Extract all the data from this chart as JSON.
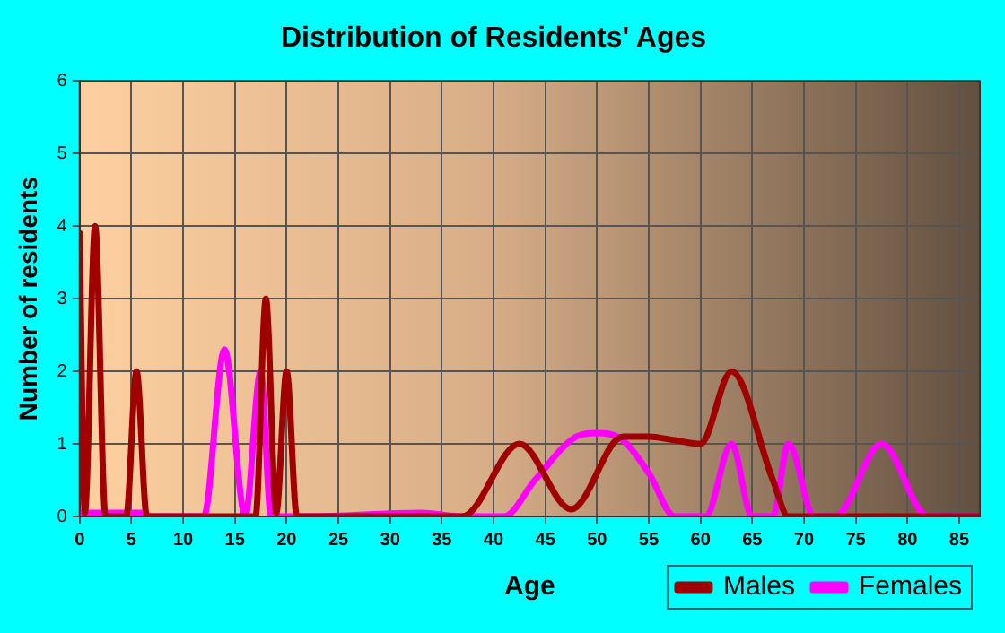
{
  "chart_data": {
    "type": "line",
    "title": "Distribution of Residents' Ages",
    "xlabel": "Age",
    "ylabel": "Number of residents",
    "xlim": [
      0,
      87
    ],
    "xticks": [
      0,
      5,
      10,
      15,
      20,
      25,
      30,
      35,
      40,
      45,
      50,
      55,
      60,
      65,
      70,
      75,
      80,
      85
    ],
    "ylim": [
      0,
      6
    ],
    "yticks": [
      0,
      1,
      2,
      3,
      4,
      5,
      6
    ],
    "grid": true,
    "legend": "bottom right",
    "marker": "none",
    "line_style": "solid",
    "series": [
      {
        "name": "Males",
        "color": "#a00000",
        "x": [
          0,
          0.5,
          1.5,
          2.5,
          4.5,
          5.5,
          6.5,
          17,
          18,
          19,
          20,
          21,
          37,
          42.5,
          47.5,
          52.5,
          55,
          57.5,
          60,
          63,
          67,
          68.5,
          87
        ],
        "values": [
          3.9,
          0.05,
          4,
          0,
          0,
          2,
          0,
          0,
          3,
          0.05,
          2,
          0,
          0,
          1,
          0.1,
          1.1,
          1.1,
          1.05,
          1,
          2,
          0.5,
          0,
          0
        ]
      },
      {
        "name": "Females",
        "color": "#ff00ff",
        "x": [
          0,
          6,
          7,
          12,
          14,
          16,
          17.5,
          18.5,
          22,
          33,
          37,
          41,
          44,
          48,
          50,
          52,
          55,
          57.5,
          60.5,
          63,
          65,
          67,
          68.5,
          71,
          73,
          77.5,
          82,
          87
        ],
        "values": [
          0.05,
          0.05,
          0,
          0,
          2.3,
          0,
          2,
          0,
          0,
          0.05,
          0,
          0,
          0.5,
          1.1,
          1.15,
          1.1,
          0.6,
          0,
          0,
          1,
          0,
          0,
          1,
          0,
          0,
          1,
          0,
          0
        ]
      }
    ]
  }
}
